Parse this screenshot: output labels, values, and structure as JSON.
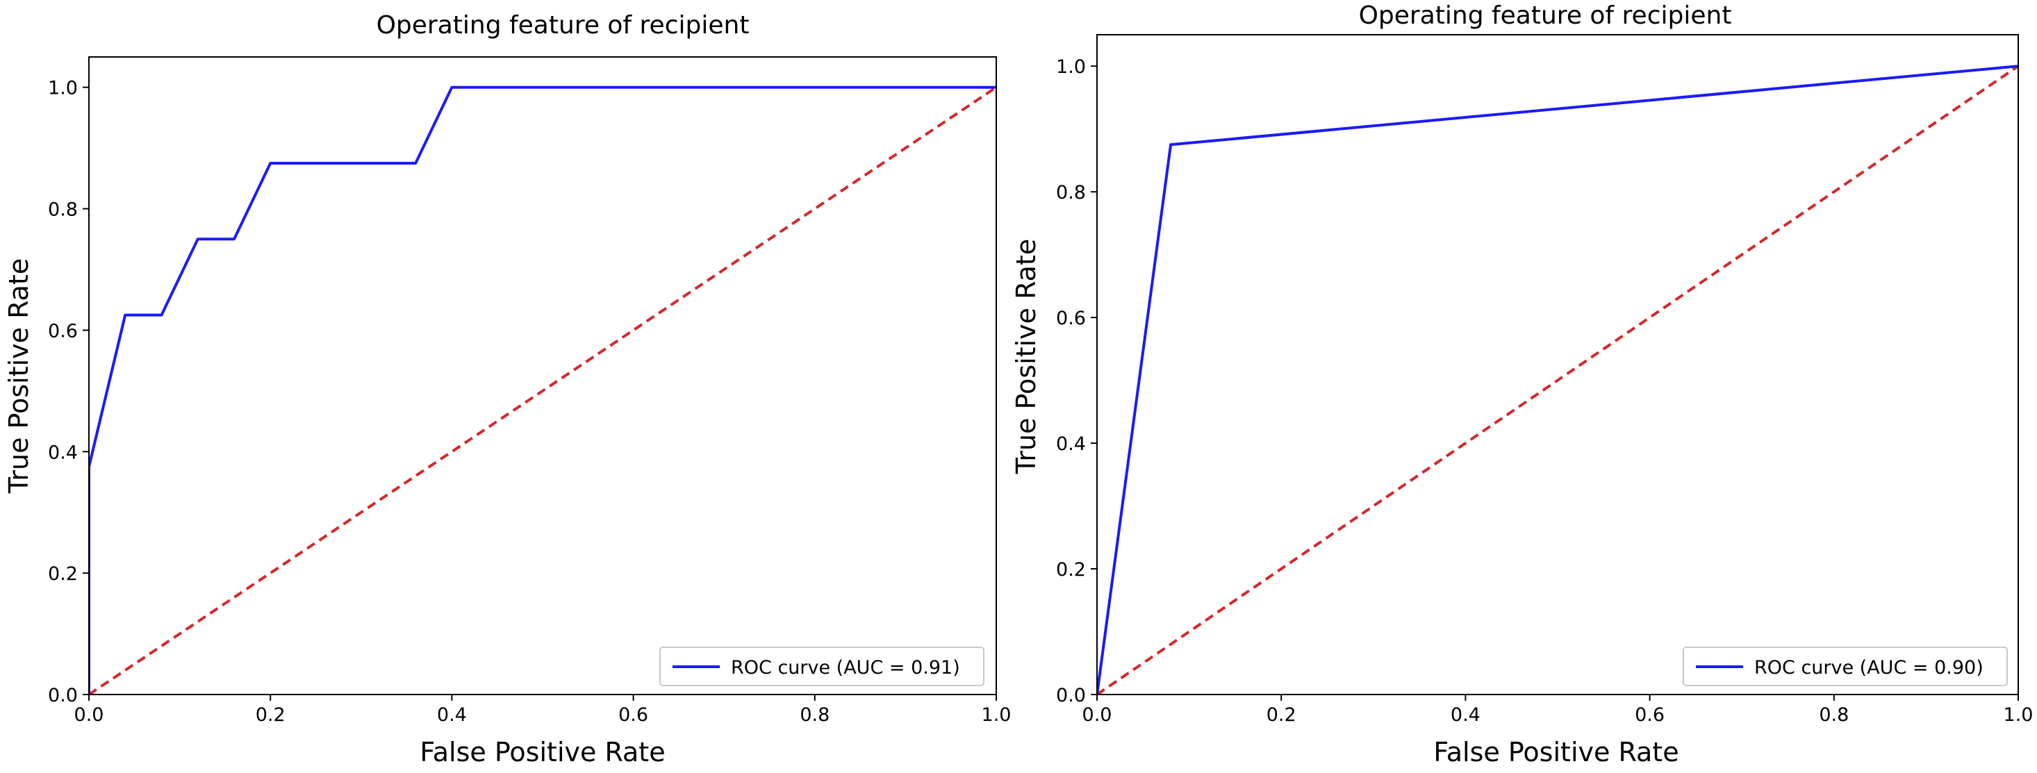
{
  "chart_data": [
    {
      "type": "line",
      "title": "Operating feature of recipient",
      "xlabel": "False Positive Rate",
      "ylabel": "True Positive Rate",
      "xlim": [
        0,
        1
      ],
      "ylim": [
        0,
        1.05
      ],
      "xticks": [
        "0.0",
        "0.2",
        "0.4",
        "0.6",
        "0.8",
        "1.0"
      ],
      "yticks": [
        "0.0",
        "0.2",
        "0.4",
        "0.6",
        "0.8",
        "1.0"
      ],
      "grid": false,
      "legend_position": "bottom-right",
      "series": [
        {
          "name": "ROC curve (AUC = 0.91)",
          "color": "#1a1aff",
          "style": "solid",
          "x": [
            0,
            0,
            0.04,
            0.08,
            0.12,
            0.16,
            0.2,
            0.36,
            0.4,
            1.0
          ],
          "y": [
            0,
            0.375,
            0.625,
            0.625,
            0.75,
            0.75,
            0.875,
            0.875,
            1.0,
            1.0
          ]
        },
        {
          "color": "#d62728",
          "style": "dashed",
          "x": [
            0,
            1
          ],
          "y": [
            0,
            1
          ]
        }
      ]
    },
    {
      "type": "line",
      "title": "Operating feature of recipient",
      "xlabel": "False Positive Rate",
      "ylabel": "True Positive Rate",
      "xlim": [
        0,
        1
      ],
      "ylim": [
        0,
        1.05
      ],
      "xticks": [
        "0.0",
        "0.2",
        "0.4",
        "0.6",
        "0.8",
        "1.0"
      ],
      "yticks": [
        "0.0",
        "0.2",
        "0.4",
        "0.6",
        "0.8",
        "1.0"
      ],
      "grid": false,
      "legend_position": "bottom-right",
      "series": [
        {
          "name": "ROC curve (AUC = 0.90)",
          "color": "#1a1aff",
          "style": "solid",
          "x": [
            0,
            0.08,
            1.0
          ],
          "y": [
            0,
            0.875,
            1.0
          ]
        },
        {
          "color": "#d62728",
          "style": "dashed",
          "x": [
            0,
            1
          ],
          "y": [
            0,
            1
          ]
        }
      ]
    }
  ]
}
